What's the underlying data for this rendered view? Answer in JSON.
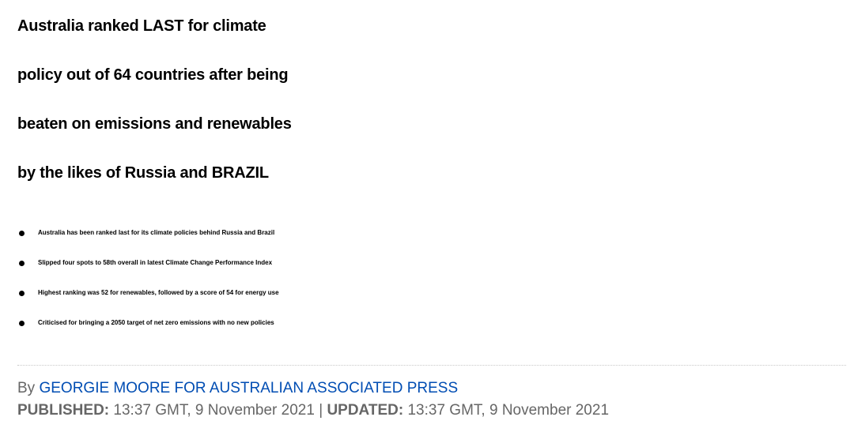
{
  "headline": {
    "lines": [
      "Australia ranked LAST for climate",
      "policy out of 64 countries after being",
      "beaten on emissions and renewables",
      "by the likes of Russia and BRAZIL"
    ]
  },
  "bullets": [
    "Australia has been ranked last for its climate policies behind Russia and Brazil",
    "Slipped four spots to 58th overall in latest Climate Change Performance Index",
    "Highest ranking was 52 for renewables, followed by a score of 54 for energy use",
    "Criticised for bringing a 2050 target of net zero emissions with no new policies"
  ],
  "byline": {
    "prefix": "By",
    "author": "GEORGIE MOORE FOR AUSTRALIAN ASSOCIATED PRESS"
  },
  "dates": {
    "published_label": "PUBLISHED:",
    "published_value": "13:37 GMT, 9 November 2021",
    "separator": "|",
    "updated_label": "UPDATED:",
    "updated_value": "13:37 GMT, 9 November 2021"
  },
  "colors": {
    "text": "#000000",
    "meta_text": "#666666",
    "author_link": "#004db3"
  }
}
